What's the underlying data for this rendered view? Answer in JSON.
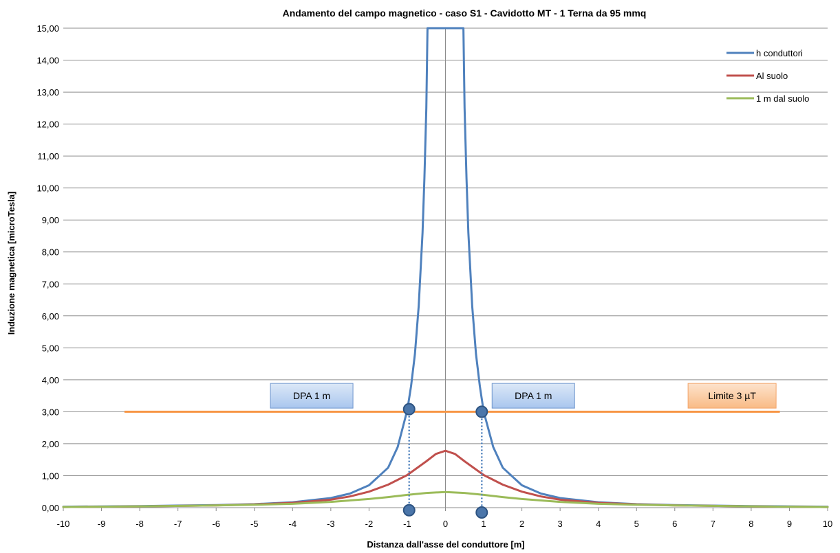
{
  "chart_data": {
    "type": "line",
    "title": "Andamento del campo magnetico - caso S1 - Cavidotto MT - 1 Terna da 95 mmq",
    "xlabel": "Distanza dall'asse del conduttore [m]",
    "ylabel": "Induzione magnetica [microTesla]",
    "xlim": [
      -10,
      10
    ],
    "ylim": [
      0,
      15
    ],
    "x_ticks": [
      "-10",
      "-9",
      "-8",
      "-7",
      "-6",
      "-5",
      "-4",
      "-3",
      "-2",
      "-1",
      "0",
      "1",
      "2",
      "3",
      "4",
      "5",
      "6",
      "7",
      "8",
      "9",
      "10"
    ],
    "y_ticks": [
      "0,00",
      "1,00",
      "2,00",
      "3,00",
      "4,00",
      "5,00",
      "6,00",
      "7,00",
      "8,00",
      "9,00",
      "10,00",
      "11,00",
      "12,00",
      "13,00",
      "14,00",
      "15,00"
    ],
    "grid": "horizontal",
    "legend_position": "top-right",
    "series": [
      {
        "name": "h conduttori",
        "color": "#4f81bd",
        "x": [
          -10,
          -8,
          -6,
          -5,
          -4,
          -3,
          -2.5,
          -2,
          -1.5,
          -1.25,
          -1,
          -0.9,
          -0.8,
          -0.7,
          -0.6,
          -0.55,
          -0.5,
          -0.47,
          0.47,
          0.5,
          0.55,
          0.6,
          0.7,
          0.8,
          0.9,
          1,
          1.25,
          1.5,
          2,
          2.5,
          3,
          4,
          5,
          6,
          8,
          10
        ],
        "y": [
          0.03,
          0.05,
          0.08,
          0.11,
          0.17,
          0.3,
          0.44,
          0.7,
          1.25,
          1.9,
          3.05,
          3.8,
          4.8,
          6.3,
          8.6,
          10.3,
          12.5,
          15.0,
          15.0,
          12.5,
          10.3,
          8.6,
          6.3,
          4.8,
          3.8,
          3.0,
          1.9,
          1.25,
          0.7,
          0.44,
          0.3,
          0.17,
          0.11,
          0.08,
          0.05,
          0.03
        ]
      },
      {
        "name": "Al suolo",
        "color": "#c0504d",
        "x": [
          -10,
          -8,
          -6,
          -5,
          -4,
          -3,
          -2.5,
          -2,
          -1.5,
          -1,
          -0.5,
          -0.25,
          0,
          0.25,
          0.5,
          1,
          1.5,
          2,
          2.5,
          3,
          4,
          5,
          6,
          8,
          10
        ],
        "y": [
          0.02,
          0.04,
          0.07,
          0.1,
          0.15,
          0.25,
          0.35,
          0.5,
          0.72,
          1.02,
          1.45,
          1.68,
          1.78,
          1.68,
          1.45,
          1.02,
          0.72,
          0.5,
          0.35,
          0.25,
          0.15,
          0.1,
          0.07,
          0.04,
          0.02
        ]
      },
      {
        "name": "1 m dal suolo",
        "color": "#9bbb59",
        "x": [
          -10,
          -8,
          -6,
          -5,
          -4,
          -3,
          -2,
          -1.5,
          -1,
          -0.5,
          0,
          0.5,
          1,
          1.5,
          2,
          3,
          4,
          5,
          6,
          8,
          10
        ],
        "y": [
          0.02,
          0.04,
          0.07,
          0.09,
          0.12,
          0.18,
          0.27,
          0.33,
          0.4,
          0.46,
          0.49,
          0.46,
          0.4,
          0.33,
          0.27,
          0.18,
          0.12,
          0.09,
          0.07,
          0.04,
          0.02
        ]
      }
    ],
    "limit_line": {
      "label": "Limite 3 µT",
      "y": 3.0,
      "x_start": -8.4,
      "x_end": 8.75,
      "color": "#f79646"
    },
    "dpa_markers": [
      {
        "x": -0.95,
        "y_top": 3.08,
        "y_bottom": -0.08
      },
      {
        "x": 0.95,
        "y_top": 3.0,
        "y_bottom": -0.15
      }
    ],
    "annotations": [
      {
        "text": "DPA 1 m",
        "x": -3.5,
        "y": 3.5
      },
      {
        "text": "DPA 1 m",
        "x": 2.3,
        "y": 3.5
      },
      {
        "text": "Limite 3 µT",
        "x": 7.5,
        "y": 3.5
      }
    ]
  }
}
